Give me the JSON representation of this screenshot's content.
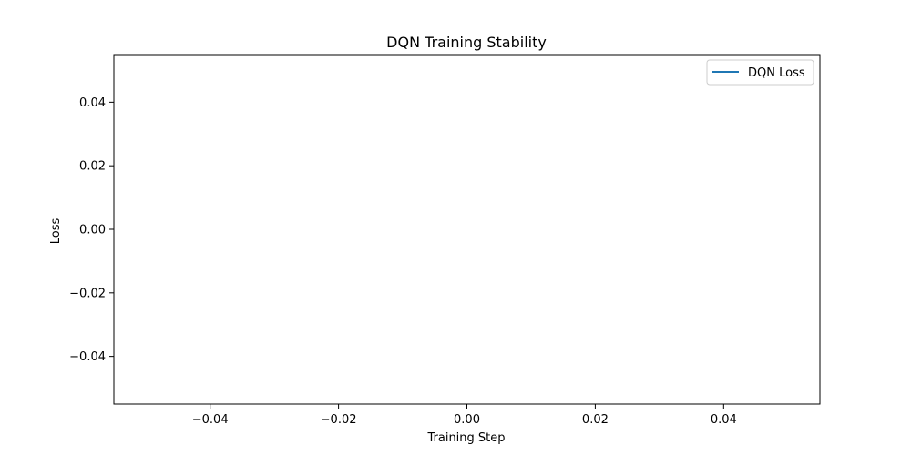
{
  "chart_data": {
    "type": "line",
    "title": "DQN Training Stability",
    "xlabel": "Training Step",
    "ylabel": "Loss",
    "xlim": [
      -0.055,
      0.055
    ],
    "ylim": [
      -0.055,
      0.055
    ],
    "x_ticks": [
      -0.04,
      -0.02,
      0.0,
      0.02,
      0.04
    ],
    "x_tick_labels": [
      "−0.04",
      "−0.02",
      "0.00",
      "0.02",
      "0.04"
    ],
    "y_ticks": [
      0.04,
      0.02,
      0.0,
      -0.02,
      -0.04
    ],
    "y_tick_labels": [
      "0.04",
      "0.02",
      "0.00",
      "−0.02",
      "−0.04"
    ],
    "grid": false,
    "legend_position": "top-right",
    "series": [
      {
        "name": "DQN Loss",
        "color": "#1f77b4",
        "x": [],
        "y": []
      }
    ]
  }
}
